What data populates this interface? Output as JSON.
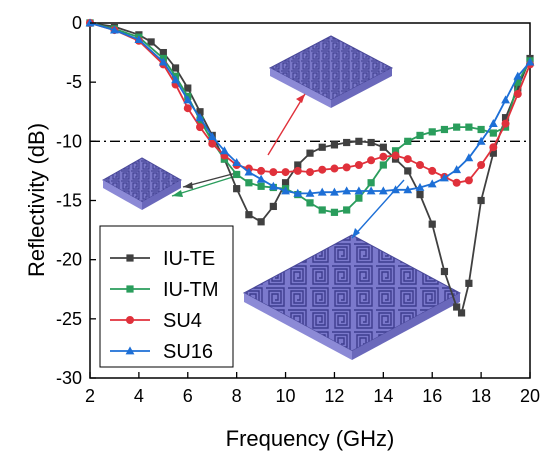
{
  "chart_data": {
    "type": "line",
    "xlabel": "Frequency (GHz)",
    "ylabel": "Reflectivity (dB)",
    "xlim": [
      2,
      20
    ],
    "ylim": [
      -30,
      0
    ],
    "xticks": [
      2,
      4,
      6,
      8,
      10,
      12,
      14,
      16,
      18,
      20
    ],
    "yticks": [
      0,
      -5,
      -10,
      -15,
      -20,
      -25,
      -30
    ],
    "reference_line": -10,
    "legend_position": "bottom-left",
    "grid": false,
    "series": [
      {
        "name": "IU-TE",
        "color": "#404040",
        "marker": "square",
        "x": [
          2,
          3,
          4,
          4.5,
          5,
          5.5,
          6,
          6.5,
          7,
          7.5,
          8,
          8.5,
          9,
          9.5,
          10,
          10.5,
          11,
          11.5,
          12,
          12.5,
          13,
          13.5,
          14,
          14.5,
          15,
          15.5,
          16,
          16.5,
          17,
          17.2,
          17.5,
          18,
          18.5,
          19,
          19.5,
          20
        ],
        "y": [
          0,
          -0.3,
          -1,
          -1.6,
          -2.5,
          -3.8,
          -5.5,
          -7.5,
          -9.5,
          -11.5,
          -14,
          -16.2,
          -16.8,
          -15.5,
          -13.5,
          -12,
          -11,
          -10.5,
          -10.3,
          -10.1,
          -10,
          -10.1,
          -10.5,
          -11.5,
          -12.5,
          -14.5,
          -17,
          -21,
          -24,
          -24.5,
          -22,
          -15,
          -11,
          -8,
          -5.5,
          -3
        ]
      },
      {
        "name": "IU-TM",
        "color": "#2a9d5c",
        "marker": "square",
        "x": [
          2,
          3,
          4,
          5,
          5.5,
          6,
          6.5,
          7,
          7.5,
          8,
          8.5,
          9,
          9.5,
          10,
          10.5,
          11,
          11.5,
          12,
          12.5,
          13,
          13.5,
          14,
          14.5,
          15,
          15.5,
          16,
          16.5,
          17,
          17.5,
          18,
          18.5,
          19,
          19.5,
          20
        ],
        "y": [
          0,
          -0.5,
          -1.2,
          -3,
          -4.5,
          -6.2,
          -8.2,
          -10,
          -11.5,
          -12.8,
          -13.5,
          -13.8,
          -13.9,
          -14,
          -14.5,
          -15.2,
          -15.8,
          -16,
          -15.8,
          -14.8,
          -13.5,
          -12,
          -10.8,
          -10,
          -9.5,
          -9.2,
          -9,
          -8.8,
          -8.8,
          -9,
          -9.3,
          -8.8,
          -5,
          -3.2
        ]
      },
      {
        "name": "SU4",
        "color": "#e0313b",
        "marker": "circle",
        "x": [
          2,
          3,
          4,
          5,
          5.5,
          6,
          6.5,
          7,
          7.5,
          8,
          8.5,
          9,
          9.5,
          10,
          10.5,
          11,
          11.5,
          12,
          12.5,
          13,
          13.5,
          14,
          14.5,
          15,
          15.5,
          16,
          16.5,
          17,
          17.5,
          18,
          18.5,
          19,
          19.5,
          20
        ],
        "y": [
          0,
          -0.6,
          -1.5,
          -3.5,
          -5.2,
          -7.2,
          -8.8,
          -10.2,
          -11.2,
          -12,
          -12.3,
          -12.5,
          -12.6,
          -12.6,
          -12.5,
          -12.6,
          -12.4,
          -12.3,
          -12.2,
          -12,
          -11.6,
          -11.3,
          -11.2,
          -11.5,
          -12,
          -12.5,
          -13,
          -13.5,
          -13.3,
          -12,
          -10.5,
          -8.5,
          -6,
          -3.5
        ]
      },
      {
        "name": "SU16",
        "color": "#1d6fd6",
        "marker": "triangle",
        "x": [
          2,
          3,
          4,
          5,
          5.5,
          6,
          6.5,
          7,
          7.5,
          8,
          8.5,
          9,
          9.5,
          10,
          10.5,
          11,
          11.5,
          12,
          12.5,
          13,
          13.5,
          14,
          14.5,
          15,
          15.5,
          16,
          16.5,
          17,
          17.5,
          18,
          18.5,
          19,
          19.5,
          20
        ],
        "y": [
          0,
          -0.6,
          -1.4,
          -3.3,
          -4.8,
          -6.5,
          -8,
          -9.6,
          -10.8,
          -11.8,
          -12.6,
          -13.2,
          -13.8,
          -14.2,
          -14.4,
          -14.4,
          -14.3,
          -14.3,
          -14.2,
          -14.2,
          -14.2,
          -14.2,
          -14.1,
          -14.1,
          -13.9,
          -13.6,
          -13.1,
          -12.4,
          -11.4,
          -10,
          -8.5,
          -6.5,
          -4.5,
          -3.3
        ]
      }
    ]
  }
}
